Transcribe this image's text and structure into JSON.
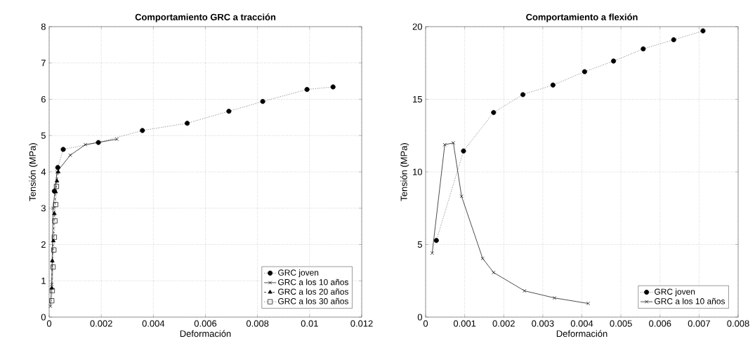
{
  "chart_data": [
    {
      "type": "line",
      "title": "Comportamiento GRC a tracción",
      "xlabel": "Deformación",
      "ylabel": "Tensión (MPa)",
      "xlim": [
        0,
        0.012
      ],
      "ylim": [
        0,
        8
      ],
      "xticks": [
        0,
        0.002,
        0.004,
        0.006,
        0.008,
        {
          "value": 0.01,
          "label": "0.01"
        },
        0.012
      ],
      "yticks": [
        0,
        1,
        2,
        3,
        4,
        5,
        6,
        7,
        8
      ],
      "grid": true,
      "legend": "bottom right",
      "series": [
        {
          "name": "GRC joven",
          "color": "#000000",
          "marker": "circle",
          "line_style": "dotted",
          "x": [
            0.0002,
            0.00033,
            0.00054,
            0.00189,
            0.00358,
            0.0053,
            0.0069,
            0.0082,
            0.0099,
            0.0109
          ],
          "values": [
            3.47,
            4.12,
            4.62,
            4.81,
            5.14,
            5.34,
            5.67,
            5.94,
            6.27,
            6.34
          ]
        },
        {
          "name": "GRC a los 10 años",
          "color": "#000000",
          "marker": "cross",
          "line_style": "solid",
          "x": [
            5e-05,
            0.0001,
            0.00015,
            0.0003,
            0.00081,
            0.00139,
            0.0026
          ],
          "values": [
            0.3,
            0.9,
            3.0,
            4.0,
            4.46,
            4.75,
            4.9
          ]
        },
        {
          "name": "GRC a los 20 años",
          "color": "#000000",
          "marker": "triangle",
          "line_style": "dashed",
          "x": [
            0.0001,
            0.00012,
            0.00016,
            0.0002,
            0.00025,
            0.0003,
            0.00035
          ],
          "values": [
            0.8,
            1.55,
            2.1,
            2.85,
            3.45,
            3.75,
            4.0
          ]
        },
        {
          "name": "GRC a los 30 años",
          "color": "#000000",
          "marker": "square",
          "line_style": "dotted",
          "x": [
            0.0001,
            0.00012,
            0.00015,
            0.00018,
            0.0002,
            0.00022,
            0.00025,
            0.00028
          ],
          "values": [
            0.45,
            0.73,
            1.38,
            1.85,
            2.2,
            2.65,
            3.1,
            3.6
          ]
        }
      ]
    },
    {
      "type": "line",
      "title": "Comportamiento a flexión",
      "xlabel": "Deformación",
      "ylabel": "Tensión (MPa)",
      "xlim": [
        0,
        0.008
      ],
      "ylim": [
        0,
        20
      ],
      "xticks": [
        0,
        0.001,
        0.002,
        0.003,
        0.004,
        0.005,
        0.006,
        0.007,
        0.008
      ],
      "yticks": [
        0,
        5,
        10,
        15,
        20
      ],
      "grid": true,
      "legend": "bottom right",
      "series": [
        {
          "name": "GRC joven",
          "color": "#000000",
          "marker": "circle",
          "line_style": "dotted",
          "x": [
            0.000275,
            0.00097,
            0.00174,
            0.00249,
            0.00326,
            0.00407,
            0.00481,
            0.00557,
            0.00635,
            0.0071
          ],
          "values": [
            5.28,
            11.44,
            14.09,
            15.32,
            15.98,
            16.9,
            17.63,
            18.47,
            19.1,
            19.71
          ]
        },
        {
          "name": "GRC a los 10 años",
          "color": "#000000",
          "marker": "cross",
          "line_style": "solid",
          "x": [
            0.000168,
            0.00049,
            0.00071,
            0.00092,
            0.00146,
            0.00174,
            0.00253,
            0.0033,
            0.00416
          ],
          "values": [
            4.41,
            11.87,
            12.0,
            8.32,
            4.04,
            3.07,
            1.81,
            1.32,
            0.94
          ]
        }
      ]
    }
  ]
}
